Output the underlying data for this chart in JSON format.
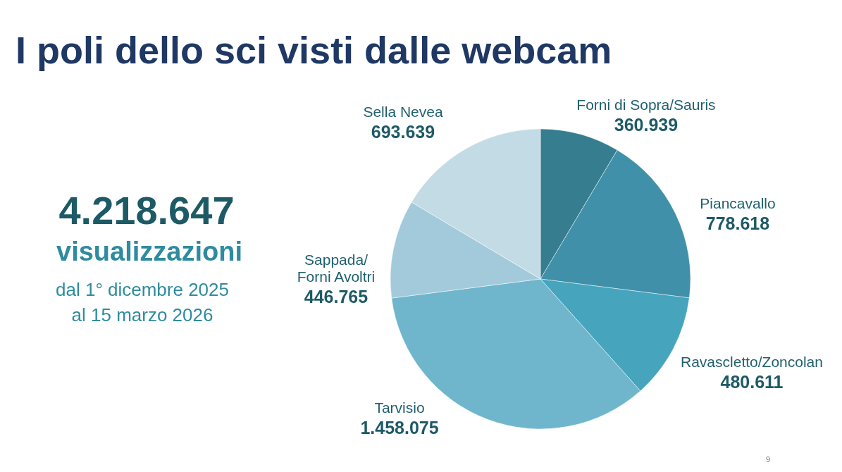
{
  "chart_data": {
    "type": "pie",
    "title": "I poli dello sci visti dalle webcam",
    "categories": [
      "Forni di Sopra/Sauris",
      "Piancavallo",
      "Ravascletto/Zoncolan",
      "Tarvisio",
      "Sappada/\nForni Avoltri",
      "Sella Nevea"
    ],
    "values": [
      360939,
      778618,
      480611,
      1458075,
      446765,
      693639
    ],
    "value_labels": [
      "360.939",
      "778.618",
      "480.611",
      "1.458.075",
      "446.765",
      "693.639"
    ],
    "colors": [
      "#357d8f",
      "#3f90a8",
      "#46a4bd",
      "#6fb6cd",
      "#a3cadb",
      "#c2dbe4"
    ],
    "annotations": [
      "4.218.647",
      "visualizzazioni",
      "dal 1° dicembre 2025",
      "al 15 marzo 2026",
      "9"
    ],
    "legend": false
  }
}
